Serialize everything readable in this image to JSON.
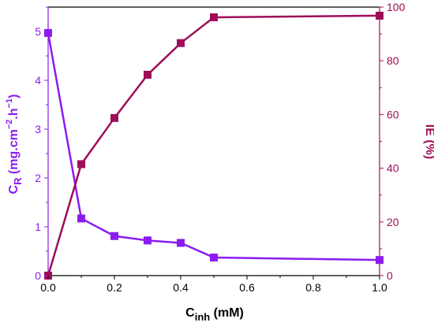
{
  "chart_data": {
    "type": "line",
    "xlabel": "C",
    "xlabel_sub": "inh",
    "xlabel_unit": " (mM)",
    "xlim": [
      0,
      1.0
    ],
    "x_ticks": [
      "0.0",
      "0.2",
      "0.4",
      "0.6",
      "0.8",
      "1.0"
    ],
    "y_left": {
      "label": "C",
      "label_sub": "R",
      "label_unit": " (mg.cm",
      "label_sup": "−2",
      "label_unit2": ".h",
      "label_sup2": "−1",
      "label_end": ")",
      "color": "#8B1CF0",
      "lim": [
        0,
        5.5
      ],
      "ticks": [
        "0",
        "1",
        "2",
        "3",
        "4",
        "5"
      ]
    },
    "y_right": {
      "label": "IE (%)",
      "color": "#9E0E58",
      "lim": [
        0,
        100
      ],
      "ticks": [
        "0",
        "20",
        "40",
        "60",
        "80",
        "100"
      ]
    },
    "series": [
      {
        "axis": "left",
        "color": "#8B1CF0",
        "marker": "square",
        "x": [
          0.0,
          0.1,
          0.2,
          0.3,
          0.4,
          0.5,
          1.0
        ],
        "values": [
          4.97,
          1.17,
          0.81,
          0.72,
          0.67,
          0.37,
          0.32
        ]
      },
      {
        "axis": "right",
        "color": "#9E0E58",
        "marker": "square",
        "x": [
          0.0,
          0.1,
          0.2,
          0.3,
          0.4,
          0.5,
          1.0
        ],
        "values": [
          0,
          41.5,
          58.7,
          74.8,
          86.6,
          96.2,
          96.8
        ]
      }
    ],
    "grid": false,
    "legend": "none"
  }
}
